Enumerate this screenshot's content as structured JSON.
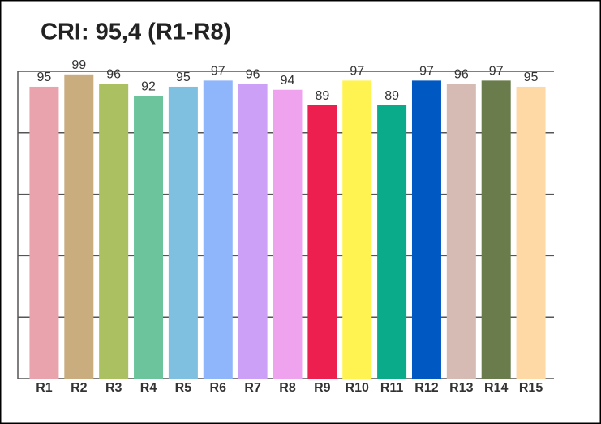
{
  "chart_data": {
    "type": "bar",
    "title": "CRI: 95,4 (R1-R8)",
    "categories": [
      "R1",
      "R2",
      "R3",
      "R4",
      "R5",
      "R6",
      "R7",
      "R8",
      "R9",
      "R10",
      "R11",
      "R12",
      "R13",
      "R14",
      "R15"
    ],
    "values": [
      95,
      99,
      96,
      92,
      95,
      97,
      96,
      94,
      89,
      97,
      89,
      97,
      96,
      97,
      95
    ],
    "colors": [
      "#e8a3ad",
      "#c9ad7f",
      "#abc060",
      "#6bc49b",
      "#7fc0e0",
      "#8fb5fb",
      "#cda0f8",
      "#efa3ef",
      "#ec1f4f",
      "#fff352",
      "#0aab8a",
      "#0059c3",
      "#d6bbb5",
      "#6a7c4b",
      "#fed9a6"
    ],
    "ylim": [
      0,
      100
    ],
    "yticks": [
      0,
      20,
      40,
      60,
      80,
      100
    ],
    "grid": true
  }
}
